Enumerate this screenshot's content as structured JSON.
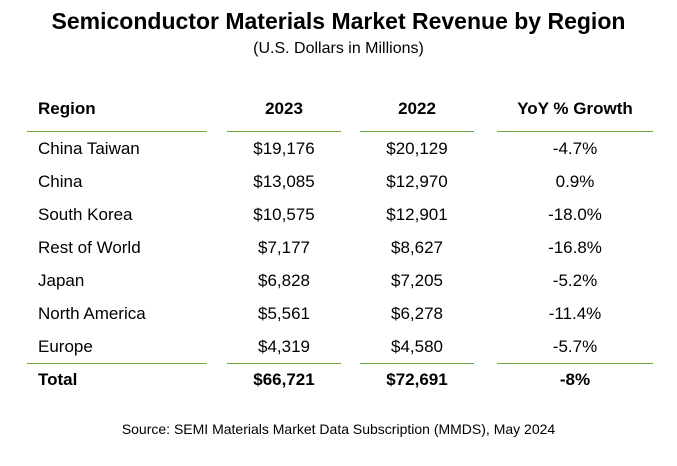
{
  "title": "Semiconductor Materials Market Revenue by Region",
  "subtitle": "(U.S. Dollars in Millions)",
  "table": {
    "headers": [
      "Region",
      "2023",
      "2022",
      "YoY % Growth"
    ],
    "rows": [
      [
        "China Taiwan",
        "$19,176",
        "$20,129",
        "-4.7%"
      ],
      [
        "China",
        "$13,085",
        "$12,970",
        "0.9%"
      ],
      [
        "South Korea",
        "$10,575",
        "$12,901",
        "-18.0%"
      ],
      [
        "Rest of World",
        "$7,177",
        "$8,627",
        "-16.8%"
      ],
      [
        "Japan",
        "$6,828",
        "$7,205",
        "-5.2%"
      ],
      [
        "North America",
        "$5,561",
        "$6,278",
        "-11.4%"
      ],
      [
        "Europe",
        "$4,319",
        "$4,580",
        "-5.7%"
      ]
    ],
    "total": [
      "Total",
      "$66,721",
      "$72,691",
      "-8%"
    ]
  },
  "source": "Source: SEMI Materials Market Data Subscription (MMDS), May 2024",
  "colors": {
    "rule": "#6aaa3a"
  }
}
